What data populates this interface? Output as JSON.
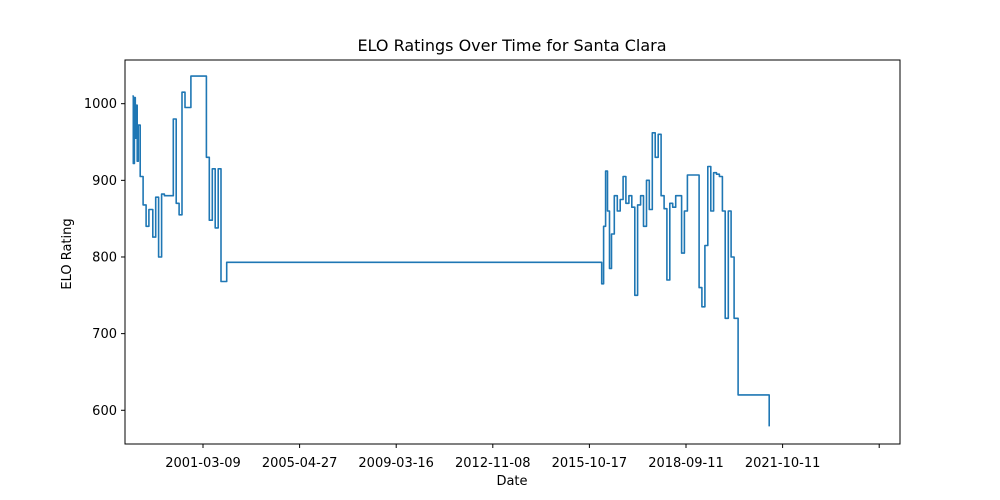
{
  "chart_data": {
    "type": "line",
    "title": "ELO Ratings Over Time for Santa Clara",
    "xlabel": "Date",
    "ylabel": "ELO Rating",
    "x_ticks": [
      "2001-03-09",
      "2005-04-27",
      "2009-03-16",
      "2012-11-08",
      "2015-10-17",
      "2018-09-11",
      "2021-10-11",
      ""
    ],
    "y_ticks": [
      600,
      700,
      800,
      900,
      1000
    ],
    "ylim": [
      556,
      1057
    ],
    "grid": false,
    "legend": "none",
    "line_color": "#1f77b4",
    "series": [
      {
        "x": [
          "1998-03-01",
          "1998-03-15",
          "1998-04-01",
          "1998-04-15",
          "1998-05-01",
          "1998-05-15",
          "1998-06-01",
          "1998-07-01",
          "1998-08-15",
          "1998-10-01",
          "1998-11-15",
          "1999-01-15",
          "1999-03-01",
          "1999-04-15",
          "1999-06-01",
          "1999-07-15",
          "1999-09-01",
          "1999-10-15",
          "1999-12-01",
          "2000-01-15",
          "2000-03-01",
          "2000-04-15",
          "2000-06-01",
          "2000-09-01",
          "2001-05-01",
          "2001-06-15",
          "2001-08-01",
          "2001-09-15",
          "2001-11-01",
          "2001-12-15",
          "2002-01-15",
          "2002-02-15",
          "2002-03-15",
          "2002-04-15",
          "2002-05-15",
          "2002-06-15",
          "2002-07-15",
          "2002-08-15",
          "2002-09-15",
          "2002-10-15",
          "2002-11-15",
          "2002-12-15",
          "2003-01-15",
          "2003-03-01",
          "2003-05-01",
          "2003-07-01",
          "2003-09-01",
          "2003-12-01",
          "2004-05-01",
          "2004-05-02",
          "2018-03-01",
          "2018-04-01",
          "2018-05-01",
          "2018-06-01",
          "2018-07-01",
          "2018-08-01",
          "2018-09-01",
          "2018-10-15",
          "2018-12-01",
          "2019-01-15",
          "2019-03-01",
          "2019-04-15",
          "2019-06-01",
          "2019-07-15",
          "2019-09-01",
          "2019-10-15",
          "2019-12-01",
          "2020-01-15",
          "2020-03-01",
          "2020-04-15",
          "2020-06-01",
          "2020-07-15",
          "2020-09-01",
          "2020-10-15",
          "2020-12-01",
          "2021-01-15",
          "2021-03-01",
          "2021-04-15",
          "2021-06-01",
          "2021-09-01",
          "2021-10-15",
          "2021-12-01",
          "2022-01-15",
          "2022-03-01",
          "2022-04-15",
          "2022-06-01",
          "2022-07-15",
          "2022-09-01",
          "2022-10-15",
          "2022-12-01",
          "2023-01-15",
          "2023-03-01",
          "2023-04-15",
          "2023-06-01",
          "2023-07-15",
          "2023-09-01",
          "2023-10-15",
          "2023-12-01",
          "2024-02-01",
          "2025-06-01"
        ],
        "y": [
          1010,
          922,
          1008,
          955,
          998,
          925,
          972,
          905,
          868,
          840,
          862,
          826,
          878,
          800,
          882,
          880,
          880,
          880,
          980,
          870,
          855,
          1015,
          995,
          1036,
          930,
          848,
          915,
          838,
          915,
          768,
          768,
          768,
          793,
          793,
          793,
          793,
          793,
          793,
          793,
          793,
          793,
          793,
          793,
          793,
          793,
          793,
          793,
          793,
          793,
          793,
          793,
          765,
          840,
          912,
          860,
          785,
          830,
          880,
          860,
          875,
          905,
          870,
          880,
          865,
          750,
          868,
          880,
          840,
          900,
          862,
          962,
          930,
          960,
          880,
          863,
          770,
          870,
          865,
          880,
          805,
          860,
          907,
          907,
          907,
          907,
          760,
          735,
          815,
          918,
          860,
          910,
          908,
          905,
          860,
          720,
          860,
          800,
          720,
          620,
          579
        ]
      }
    ]
  }
}
